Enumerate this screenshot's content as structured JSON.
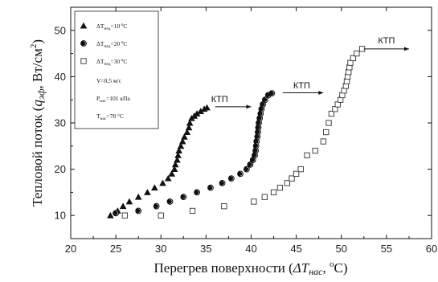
{
  "chart_data": {
    "type": "scatter",
    "xlabel_main": "Перегрев поверхности (",
    "xlabel_symbol": "ΔT",
    "xlabel_sub": "нас",
    "xlabel_tail": ", ",
    "xlabel_unit_sup": "o",
    "xlabel_unit": "C)",
    "ylabel_main": "Тепловой поток (",
    "ylabel_symbol": "q",
    "ylabel_sub": "эф",
    "ylabel_tail": ", Вт/см",
    "ylabel_sup": "2",
    "ylabel_close": ")",
    "xlim": [
      20,
      60
    ],
    "ylim": [
      5,
      55
    ],
    "xticks": [
      20,
      25,
      30,
      35,
      40,
      45,
      50,
      55,
      60
    ],
    "yticks": [
      10,
      20,
      30,
      40,
      50
    ],
    "grid": false,
    "legend_position": "top-left",
    "series": [
      {
        "name": "ΔT_нед = 10 °C",
        "legend_prefix": "ΔT",
        "legend_sub": "нед",
        "legend_value": "=10",
        "legend_sup": "o",
        "legend_unit": "C",
        "marker": "triangle",
        "points": [
          [
            24.4,
            10
          ],
          [
            25.2,
            11
          ],
          [
            25.8,
            12
          ],
          [
            26.5,
            13
          ],
          [
            27.5,
            14
          ],
          [
            28.5,
            15
          ],
          [
            29.3,
            16
          ],
          [
            30.2,
            17
          ],
          [
            30.8,
            18
          ],
          [
            31.2,
            19
          ],
          [
            31.5,
            20
          ],
          [
            31.6,
            21
          ],
          [
            31.8,
            22
          ],
          [
            31.9,
            23
          ],
          [
            32.0,
            24
          ],
          [
            32.2,
            25
          ],
          [
            32.4,
            26
          ],
          [
            32.6,
            27
          ],
          [
            32.9,
            28
          ],
          [
            33.1,
            29
          ],
          [
            33.2,
            30
          ],
          [
            33.4,
            31
          ],
          [
            33.7,
            31.5
          ],
          [
            34.0,
            32
          ],
          [
            34.4,
            32.5
          ],
          [
            34.8,
            33
          ],
          [
            35.1,
            33.3
          ]
        ]
      },
      {
        "name": "ΔT_нед = 20 °C",
        "legend_prefix": "ΔT",
        "legend_sub": "нед",
        "legend_value": "=20",
        "legend_sup": "o",
        "legend_unit": "C",
        "marker": "circle-half",
        "points": [
          [
            25.0,
            10.5
          ],
          [
            27.5,
            11
          ],
          [
            29.5,
            12
          ],
          [
            31.0,
            13
          ],
          [
            32.5,
            14
          ],
          [
            34.0,
            15
          ],
          [
            35.5,
            16
          ],
          [
            36.8,
            17
          ],
          [
            37.8,
            18
          ],
          [
            38.8,
            19
          ],
          [
            39.5,
            20
          ],
          [
            39.9,
            21
          ],
          [
            40.2,
            22
          ],
          [
            40.4,
            23
          ],
          [
            40.5,
            24
          ],
          [
            40.55,
            25
          ],
          [
            40.6,
            26
          ],
          [
            40.7,
            27
          ],
          [
            40.75,
            28
          ],
          [
            40.8,
            29
          ],
          [
            40.85,
            30
          ],
          [
            40.95,
            31
          ],
          [
            41.05,
            32
          ],
          [
            41.15,
            33
          ],
          [
            41.3,
            34
          ],
          [
            41.55,
            35
          ],
          [
            41.9,
            36
          ],
          [
            42.3,
            36.4
          ]
        ]
      },
      {
        "name": "ΔT_нед = 30 °C",
        "legend_prefix": "ΔT",
        "legend_sub": "нед",
        "legend_value": "=30",
        "legend_sup": "o",
        "legend_unit": "C",
        "marker": "square-open",
        "points": [
          [
            26.0,
            10
          ],
          [
            30.0,
            10
          ],
          [
            33.5,
            11
          ],
          [
            37.0,
            12
          ],
          [
            40.3,
            13
          ],
          [
            41.5,
            14
          ],
          [
            42.5,
            15
          ],
          [
            43.2,
            16
          ],
          [
            44.0,
            17
          ],
          [
            44.5,
            18
          ],
          [
            45.0,
            19
          ],
          [
            45.5,
            20
          ],
          [
            46.2,
            23
          ],
          [
            47.1,
            24
          ],
          [
            48.0,
            26
          ],
          [
            48.3,
            28
          ],
          [
            48.6,
            30
          ],
          [
            48.9,
            32
          ],
          [
            49.3,
            33
          ],
          [
            49.6,
            34
          ],
          [
            49.9,
            35
          ],
          [
            50.1,
            36
          ],
          [
            50.3,
            37
          ],
          [
            50.5,
            38
          ],
          [
            50.6,
            39
          ],
          [
            50.7,
            40
          ],
          [
            50.8,
            41
          ],
          [
            50.9,
            42
          ],
          [
            51.0,
            43
          ],
          [
            51.3,
            44
          ],
          [
            51.7,
            45
          ],
          [
            52.3,
            46
          ]
        ]
      }
    ],
    "legend_conditions": [
      {
        "prefix": "V=0,5 м/с",
        "sub": "",
        "tail": ""
      },
      {
        "prefix": "P",
        "sub": "нас",
        "tail": "=101 кПа"
      },
      {
        "prefix": "T",
        "sub": "нас",
        "tail": "=78 °C"
      }
    ],
    "annotations": [
      {
        "text": "КТП",
        "x": 36.5,
        "y": 34.5,
        "arrow_from": [
          36.0,
          33.5
        ],
        "arrow_to": [
          40.0,
          33.5
        ]
      },
      {
        "text": "КТП",
        "x": 45.6,
        "y": 37.5,
        "arrow_from": [
          43.5,
          36.5
        ],
        "arrow_to": [
          48.0,
          36.5
        ]
      },
      {
        "text": "КТП",
        "x": 55.0,
        "y": 47.2,
        "arrow_from": [
          52.5,
          46.0
        ],
        "arrow_to": [
          57.5,
          46.0
        ]
      }
    ]
  }
}
